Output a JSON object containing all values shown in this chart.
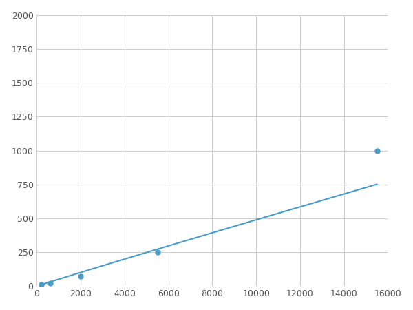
{
  "x": [
    200,
    600,
    2000,
    5500,
    15500
  ],
  "y": [
    15,
    25,
    75,
    250,
    1000
  ],
  "line_color": "#4a9cc8",
  "marker_color": "#4a9cc8",
  "marker_size": 5,
  "line_width": 1.5,
  "xlim": [
    0,
    16000
  ],
  "ylim": [
    0,
    2000
  ],
  "xticks": [
    0,
    2000,
    4000,
    6000,
    8000,
    10000,
    12000,
    14000,
    16000
  ],
  "yticks": [
    0,
    250,
    500,
    750,
    1000,
    1250,
    1500,
    1750,
    2000
  ],
  "grid": true,
  "background_color": "#ffffff",
  "figsize": [
    6.0,
    4.5
  ],
  "dpi": 100
}
